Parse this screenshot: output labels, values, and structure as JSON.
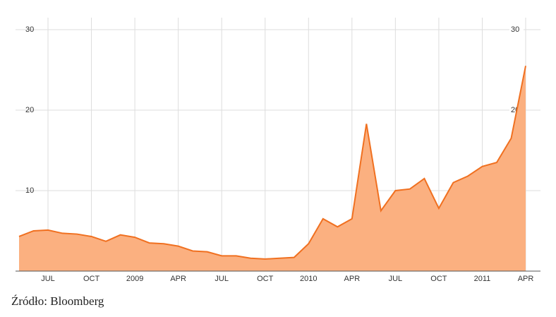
{
  "chart_data": {
    "type": "area",
    "x": [
      "2008-05",
      "2008-06",
      "2008-07",
      "2008-08",
      "2008-09",
      "2008-10",
      "2008-11",
      "2008-12",
      "2009-01",
      "2009-02",
      "2009-03",
      "2009-04",
      "2009-05",
      "2009-06",
      "2009-07",
      "2009-08",
      "2009-09",
      "2009-10",
      "2009-11",
      "2009-12",
      "2010-01",
      "2010-02",
      "2010-03",
      "2010-04",
      "2010-05",
      "2010-06",
      "2010-07",
      "2010-08",
      "2010-09",
      "2010-10",
      "2010-11",
      "2010-12",
      "2011-01",
      "2011-02",
      "2011-03",
      "2011-04"
    ],
    "values": [
      4.3,
      5.0,
      5.1,
      4.7,
      4.6,
      4.3,
      3.7,
      4.5,
      4.2,
      3.5,
      3.4,
      3.1,
      2.5,
      2.4,
      1.9,
      1.9,
      1.6,
      1.5,
      1.6,
      1.7,
      3.4,
      6.5,
      5.5,
      6.5,
      18.3,
      7.5,
      10,
      10.2,
      11.5,
      7.8,
      11,
      11.8,
      13,
      13.5,
      16.5,
      25.5
    ],
    "color": "#f07020",
    "fill": "#fbb080",
    "xlim": [
      "2008-05",
      "2011-04"
    ],
    "xticks": [
      {
        "value": "2008-07",
        "label": "JUL"
      },
      {
        "value": "2008-10",
        "label": "OCT"
      },
      {
        "value": "2009-01",
        "label": "2009"
      },
      {
        "value": "2009-04",
        "label": "APR"
      },
      {
        "value": "2009-07",
        "label": "JUL"
      },
      {
        "value": "2009-10",
        "label": "OCT"
      },
      {
        "value": "2010-01",
        "label": "2010"
      },
      {
        "value": "2010-04",
        "label": "APR"
      },
      {
        "value": "2010-07",
        "label": "JUL"
      },
      {
        "value": "2010-10",
        "label": "OCT"
      },
      {
        "value": "2011-01",
        "label": "2011"
      },
      {
        "value": "2011-04",
        "label": "APR"
      }
    ],
    "ylim": [
      0,
      30
    ],
    "yticks": [
      10,
      20,
      30
    ],
    "grid": true,
    "source": "Źródło: Bloomberg"
  }
}
